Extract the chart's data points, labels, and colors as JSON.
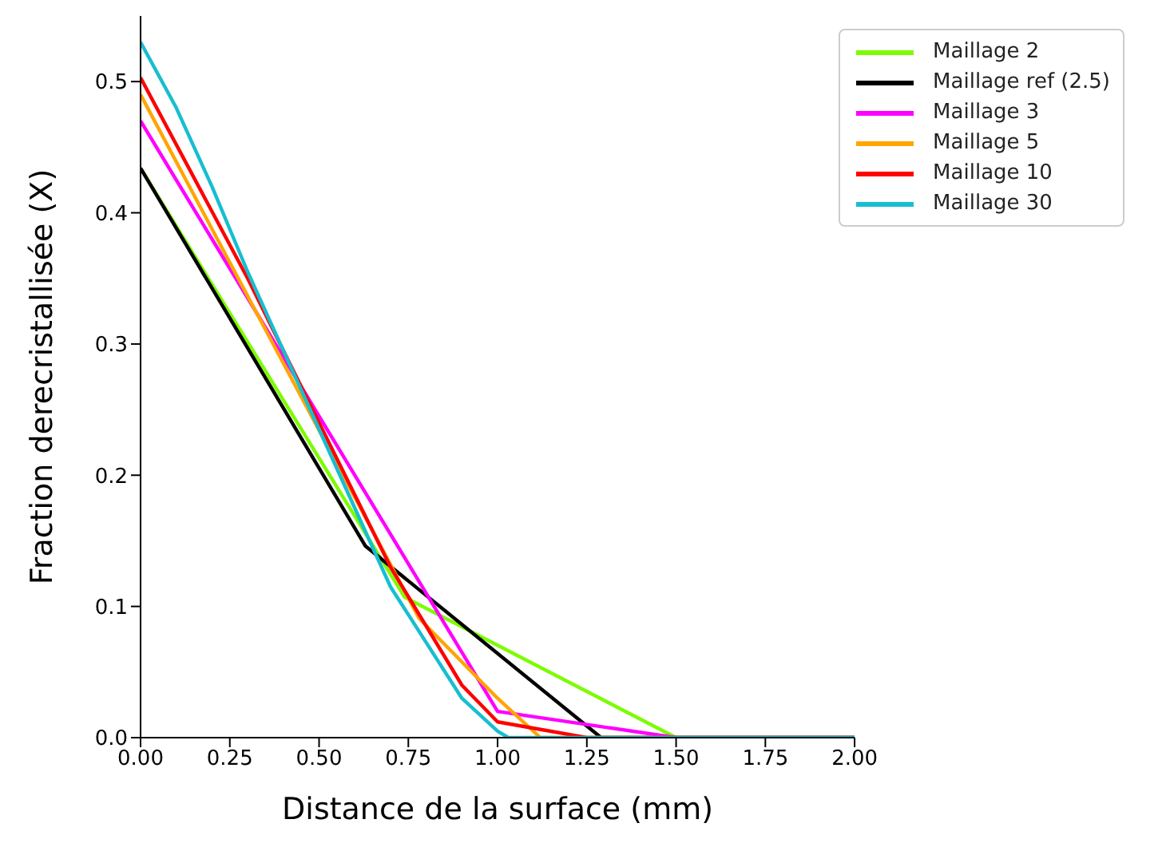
{
  "chart_data": {
    "type": "line",
    "xlabel": "Distance de la surface (mm)",
    "ylabel": "Fraction derecristallisée (X)",
    "xlim": [
      0,
      2
    ],
    "ylim": [
      0,
      0.55
    ],
    "xticks": [
      {
        "value": 0,
        "label": "0.00"
      },
      {
        "value": 0.25,
        "label": "0.25"
      },
      {
        "value": 0.5,
        "label": "0.50"
      },
      {
        "value": 0.75,
        "label": "0.75"
      },
      {
        "value": 1,
        "label": "1.00"
      },
      {
        "value": 1.25,
        "label": "1.25"
      },
      {
        "value": 1.5,
        "label": "1.50"
      },
      {
        "value": 1.75,
        "label": "1.75"
      },
      {
        "value": 2,
        "label": "2.00"
      }
    ],
    "yticks": [
      {
        "value": 0,
        "label": "0.0"
      },
      {
        "value": 0.1,
        "label": "0.1"
      },
      {
        "value": 0.2,
        "label": "0.2"
      },
      {
        "value": 0.3,
        "label": "0.3"
      },
      {
        "value": 0.4,
        "label": "0.4"
      },
      {
        "value": 0.5,
        "label": "0.5"
      }
    ],
    "grid": false,
    "legend": "top right",
    "marker": "none",
    "line_style": "solid",
    "series": [
      {
        "name": "Maillage 2",
        "color": "#7cfc00",
        "x": [
          0,
          0.74,
          1.5,
          2
        ],
        "values": [
          0.434,
          0.107,
          0,
          0
        ]
      },
      {
        "name": "Maillage ref (2.5)",
        "color": "#000000",
        "x": [
          0,
          0.63,
          1.29,
          2
        ],
        "values": [
          0.434,
          0.146,
          0,
          0
        ]
      },
      {
        "name": "Maillage 3",
        "color": "#ff00ff",
        "x": [
          0,
          1,
          1.5,
          2
        ],
        "values": [
          0.47,
          0.02,
          0,
          0
        ]
      },
      {
        "name": "Maillage 5",
        "color": "#ffa500",
        "x": [
          0,
          0.78,
          1,
          1.12,
          2
        ],
        "values": [
          0.49,
          0.091,
          0.03,
          0,
          0
        ]
      },
      {
        "name": "Maillage 10",
        "color": "#ff0000",
        "x": [
          0,
          0.3,
          0.5,
          0.7,
          0.9,
          1,
          1.25,
          2
        ],
        "values": [
          0.503,
          0.35,
          0.24,
          0.13,
          0.04,
          0.012,
          0,
          0
        ]
      },
      {
        "name": "Maillage 30",
        "color": "#17becf",
        "x": [
          0,
          0.1,
          0.2,
          0.3,
          0.5,
          0.7,
          0.9,
          1,
          1.03,
          2
        ],
        "values": [
          0.53,
          0.48,
          0.42,
          0.355,
          0.235,
          0.115,
          0.03,
          0.005,
          0,
          0
        ]
      }
    ]
  }
}
